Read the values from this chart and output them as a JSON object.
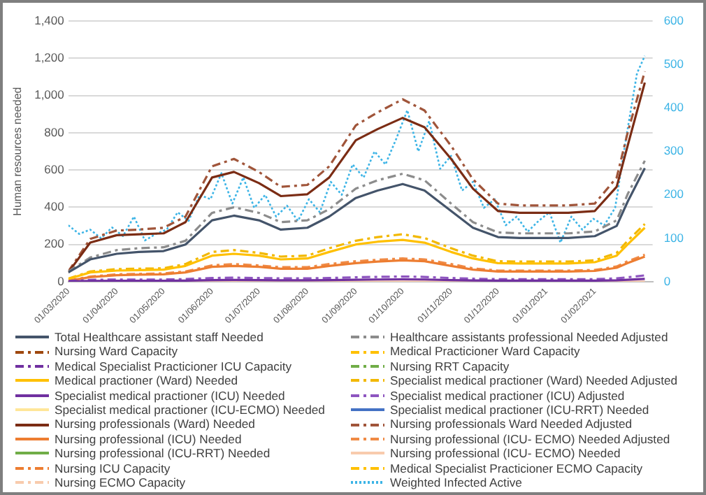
{
  "chart_data": {
    "type": "line",
    "ylabel": "Human resources needed",
    "legend": "bottom",
    "grid": "y",
    "marker": "none",
    "x": [
      "2020-03-01",
      "2020-03-15",
      "2020-04-01",
      "2020-04-15",
      "2020-05-01",
      "2020-05-15",
      "2020-06-01",
      "2020-06-15",
      "2020-07-01",
      "2020-07-15",
      "2020-08-01",
      "2020-08-15",
      "2020-09-01",
      "2020-09-15",
      "2020-10-01",
      "2020-10-15",
      "2020-11-01",
      "2020-11-15",
      "2020-12-01",
      "2020-12-15",
      "2021-01-01",
      "2021-01-15",
      "2021-02-01",
      "2021-02-15",
      "2021-02-22",
      "2021-03-05"
    ],
    "xlim": [
      "2020-03-01",
      "2021-03-10"
    ],
    "xticks": [
      {
        "value": "2020-03-01",
        "label": "01/03/2020"
      },
      {
        "value": "2020-04-01",
        "label": "01/04/2020"
      },
      {
        "value": "2020-05-01",
        "label": "01/05/2020"
      },
      {
        "value": "2020-06-01",
        "label": "01/06/2020"
      },
      {
        "value": "2020-07-01",
        "label": "01/07/2020"
      },
      {
        "value": "2020-08-01",
        "label": "01/08/2020"
      },
      {
        "value": "2020-09-01",
        "label": "01/09/2020"
      },
      {
        "value": "2020-10-01",
        "label": "01/10/2020"
      },
      {
        "value": "2020-11-01",
        "label": "01/11/2020"
      },
      {
        "value": "2020-12-01",
        "label": "01/12/2020"
      },
      {
        "value": "2021-01-01",
        "label": "01/01/2021"
      },
      {
        "value": "2021-02-01",
        "label": "01/02/2021"
      }
    ],
    "ylim": [
      0,
      1400
    ],
    "yticks": [
      {
        "value": 0,
        "label": "0"
      },
      {
        "value": 200,
        "label": "200"
      },
      {
        "value": 400,
        "label": "400"
      },
      {
        "value": 600,
        "label": "600"
      },
      {
        "value": 800,
        "label": "800"
      },
      {
        "value": 1000,
        "label": "1,000"
      },
      {
        "value": 1200,
        "label": "1,200"
      },
      {
        "value": 1400,
        "label": "1,400"
      }
    ],
    "y2lim": [
      0,
      600
    ],
    "y2ticks": [
      0,
      100,
      200,
      300,
      400,
      500,
      600
    ],
    "series": [
      {
        "name": "Total Healthcare assistant staff Needed",
        "color": "#44546a",
        "line_style": "solid",
        "values": [
          50,
          120,
          150,
          160,
          165,
          200,
          330,
          355,
          330,
          280,
          290,
          350,
          450,
          490,
          525,
          490,
          380,
          290,
          240,
          235,
          235,
          235,
          245,
          300,
          430,
          610
        ]
      },
      {
        "name": "Healthcare assistants professional Needed Adjusted",
        "color": "#8c8c8c",
        "line_style": "dashed",
        "values": [
          55,
          130,
          170,
          180,
          185,
          220,
          370,
          400,
          370,
          320,
          330,
          390,
          500,
          545,
          580,
          545,
          420,
          320,
          265,
          260,
          260,
          260,
          270,
          330,
          470,
          650
        ]
      },
      {
        "name": "Nursing Ward Capacity",
        "color": "#9e480e",
        "line_style": "dashed",
        "values": [
          null,
          null,
          null,
          null,
          null,
          null,
          null,
          null,
          null,
          null,
          null,
          null,
          null,
          null,
          null,
          null,
          null,
          null,
          null,
          null,
          null,
          null,
          null,
          null,
          null,
          null
        ]
      },
      {
        "name": "Medical Practicioner Ward Capacity",
        "color": "#ffc000",
        "line_style": "dashed",
        "values": [
          null,
          null,
          null,
          null,
          null,
          null,
          null,
          null,
          null,
          null,
          null,
          null,
          null,
          null,
          null,
          null,
          null,
          null,
          null,
          null,
          null,
          null,
          null,
          null,
          null,
          null
        ]
      },
      {
        "name": "Medical Specialist Practicioner ICU Capacity",
        "color": "#7030a0",
        "line_style": "dashed",
        "values": [
          null,
          null,
          null,
          null,
          null,
          null,
          null,
          null,
          null,
          null,
          null,
          null,
          null,
          null,
          null,
          null,
          null,
          null,
          null,
          null,
          null,
          null,
          null,
          null,
          null,
          null
        ]
      },
      {
        "name": "Nursing RRT Capacity",
        "color": "#70ad47",
        "line_style": "dashed",
        "values": [
          null,
          null,
          null,
          null,
          null,
          null,
          null,
          null,
          null,
          null,
          null,
          null,
          null,
          null,
          null,
          null,
          null,
          null,
          null,
          null,
          null,
          null,
          null,
          null,
          null,
          null
        ]
      },
      {
        "name": "Medical practioner (Ward) Needed",
        "color": "#ffc000",
        "line_style": "solid",
        "values": [
          15,
          50,
          60,
          62,
          65,
          85,
          140,
          150,
          140,
          120,
          125,
          160,
          200,
          215,
          225,
          210,
          160,
          125,
          100,
          98,
          98,
          98,
          105,
          140,
          200,
          290
        ]
      },
      {
        "name": "Specialist medical practioner (Ward) Needed Adjusted",
        "color": "#f2b800",
        "line_style": "dashed",
        "values": [
          17,
          55,
          68,
          70,
          72,
          95,
          160,
          170,
          155,
          135,
          140,
          180,
          220,
          240,
          255,
          235,
          180,
          140,
          110,
          108,
          108,
          108,
          115,
          155,
          220,
          310
        ]
      },
      {
        "name": "Specialist medical practioner (ICU) Needed",
        "color": "#7030a0",
        "line_style": "solid",
        "values": [
          2,
          4,
          5,
          5,
          5,
          6,
          9,
          10,
          9,
          8,
          8,
          9,
          11,
          12,
          13,
          12,
          9,
          7,
          6,
          6,
          6,
          6,
          6,
          8,
          11,
          15
        ]
      },
      {
        "name": "Specialist medical practioner (ICU) Adjusted",
        "color": "#8e55c0",
        "line_style": "dashed",
        "values": [
          4,
          10,
          12,
          12,
          12,
          14,
          20,
          22,
          20,
          18,
          18,
          20,
          24,
          26,
          28,
          26,
          20,
          16,
          14,
          14,
          14,
          14,
          14,
          18,
          24,
          34
        ]
      },
      {
        "name": "Specialist medical practioner (ICU-ECMO) Needed",
        "color": "#ffe699",
        "line_style": "solid",
        "values": [
          null,
          null,
          null,
          null,
          null,
          null,
          null,
          null,
          null,
          null,
          null,
          null,
          null,
          null,
          null,
          null,
          null,
          null,
          null,
          null,
          null,
          null,
          null,
          null,
          null,
          null
        ]
      },
      {
        "name": "Specialist medical practioner (ICU-RRT) Needed",
        "color": "#4472c4",
        "line_style": "solid",
        "values": [
          null,
          null,
          null,
          null,
          null,
          null,
          null,
          null,
          null,
          null,
          null,
          null,
          null,
          null,
          null,
          null,
          null,
          null,
          null,
          null,
          null,
          null,
          null,
          null,
          null,
          null
        ]
      },
      {
        "name": "Nursing professionals (Ward) Needed",
        "color": "#7b2c14",
        "line_style": "solid",
        "values": [
          50,
          210,
          250,
          255,
          260,
          320,
          560,
          590,
          530,
          460,
          470,
          560,
          760,
          820,
          880,
          830,
          660,
          500,
          380,
          370,
          370,
          370,
          380,
          510,
          730,
          1070
        ]
      },
      {
        "name": "Nursing professionals Ward Needed Adjusted",
        "color": "#a0553a",
        "line_style": "dashed",
        "values": [
          55,
          230,
          275,
          280,
          290,
          350,
          620,
          660,
          590,
          510,
          520,
          620,
          840,
          910,
          980,
          920,
          730,
          550,
          420,
          410,
          410,
          410,
          420,
          560,
          800,
          1130
        ]
      },
      {
        "name": "Nursing professional (ICU) Needed",
        "color": "#ed7d31",
        "line_style": "solid",
        "values": [
          5,
          25,
          35,
          38,
          40,
          50,
          80,
          85,
          80,
          70,
          70,
          85,
          100,
          108,
          115,
          110,
          85,
          65,
          55,
          55,
          55,
          55,
          58,
          75,
          100,
          135
        ]
      },
      {
        "name": "Nursing professional (ICU- ECMO) Needed Adjusted",
        "color": "#f08a45",
        "line_style": "dashed",
        "values": [
          6,
          28,
          40,
          42,
          45,
          55,
          88,
          95,
          88,
          78,
          78,
          95,
          110,
          118,
          125,
          120,
          95,
          72,
          60,
          60,
          60,
          60,
          63,
          82,
          110,
          145
        ]
      },
      {
        "name": "Nursing professional (ICU-RRT) Needed",
        "color": "#70ad47",
        "line_style": "solid",
        "values": [
          null,
          null,
          null,
          null,
          null,
          null,
          null,
          null,
          null,
          null,
          null,
          null,
          null,
          null,
          null,
          null,
          null,
          null,
          null,
          null,
          null,
          null,
          null,
          null,
          null,
          null
        ]
      },
      {
        "name": "Nursing professional (ICU- ECMO) Needed",
        "color": "#f8cbad",
        "line_style": "solid",
        "values": [
          0,
          0,
          0,
          0,
          0,
          0,
          0,
          0,
          0,
          0,
          0,
          0,
          0,
          0,
          0,
          0,
          0,
          0,
          0,
          0,
          0,
          0,
          0,
          0,
          0,
          0
        ]
      },
      {
        "name": "Nursing ICU Capacity",
        "color": "#ed7d31",
        "line_style": "dashed",
        "values": [
          null,
          null,
          null,
          null,
          null,
          null,
          null,
          null,
          null,
          null,
          null,
          null,
          null,
          null,
          null,
          null,
          null,
          null,
          null,
          null,
          null,
          null,
          null,
          null,
          null,
          null
        ]
      },
      {
        "name": "Medical Specialist Practicioner ECMO Capacity",
        "color": "#ffc000",
        "line_style": "dashed",
        "values": [
          null,
          null,
          null,
          null,
          null,
          null,
          null,
          null,
          null,
          null,
          null,
          null,
          null,
          null,
          null,
          null,
          null,
          null,
          null,
          null,
          null,
          null,
          null,
          null,
          null,
          null
        ]
      },
      {
        "name": "Nursing ECMO Capacity",
        "color": "#f8cbad",
        "line_style": "dashed",
        "values": [
          null,
          null,
          null,
          null,
          null,
          null,
          null,
          null,
          null,
          null,
          null,
          null,
          null,
          null,
          null,
          null,
          null,
          null,
          null,
          null,
          null,
          null,
          null,
          null,
          null,
          null
        ]
      },
      {
        "name": "Weighted Infected Active",
        "color": "#3cb4e6",
        "line_style": "dotted",
        "axis": "y2",
        "x": [
          "2020-03-01",
          "2020-03-08",
          "2020-03-15",
          "2020-03-22",
          "2020-03-29",
          "2020-04-05",
          "2020-04-12",
          "2020-04-19",
          "2020-04-26",
          "2020-05-03",
          "2020-05-10",
          "2020-05-17",
          "2020-05-24",
          "2020-05-31",
          "2020-06-07",
          "2020-06-14",
          "2020-06-21",
          "2020-06-28",
          "2020-07-05",
          "2020-07-12",
          "2020-07-19",
          "2020-07-26",
          "2020-08-02",
          "2020-08-09",
          "2020-08-16",
          "2020-08-23",
          "2020-08-30",
          "2020-09-06",
          "2020-09-13",
          "2020-09-20",
          "2020-09-27",
          "2020-10-04",
          "2020-10-11",
          "2020-10-18",
          "2020-10-25",
          "2020-11-01",
          "2020-11-08",
          "2020-11-15",
          "2020-11-22",
          "2020-11-29",
          "2020-12-06",
          "2020-12-13",
          "2020-12-20",
          "2020-12-27",
          "2021-01-03",
          "2021-01-10",
          "2021-01-17",
          "2021-01-24",
          "2021-01-31",
          "2021-02-07",
          "2021-02-14",
          "2021-02-21",
          "2021-02-28",
          "2021-03-05"
        ],
        "values": [
          130,
          110,
          120,
          100,
          125,
          105,
          150,
          95,
          110,
          120,
          160,
          140,
          200,
          190,
          250,
          180,
          240,
          170,
          200,
          150,
          175,
          140,
          190,
          160,
          230,
          200,
          270,
          240,
          300,
          270,
          330,
          395,
          300,
          370,
          260,
          290,
          210,
          230,
          170,
          190,
          130,
          150,
          115,
          140,
          160,
          90,
          150,
          120,
          145,
          130,
          170,
          330,
          480,
          520
        ]
      }
    ]
  }
}
